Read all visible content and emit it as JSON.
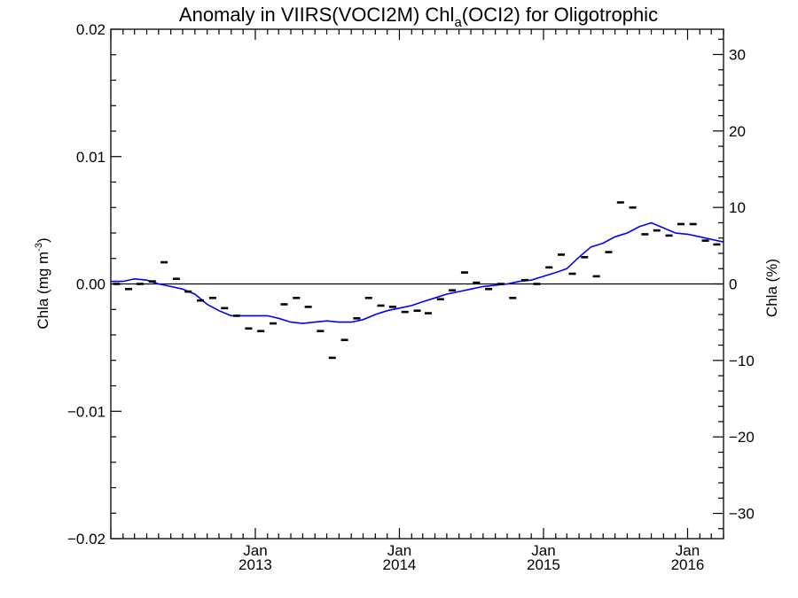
{
  "chart_data": {
    "type": "scatter",
    "title": "Anomaly in VIIRS(VOCI2M) Chla(OCI2) for Oligotrophic",
    "title_parts": {
      "before": "Anomaly in VIIRS(VOCI2M) Chl",
      "sub": "a",
      "after": "(OCI2) for Oligotrophic"
    },
    "ylabel_left": {
      "before": "Chla (mg m",
      "sup": "-3",
      "after": ")"
    },
    "ylabel_right": "Chla (%)",
    "xlim": [
      "2012-01-01",
      "2016-04-01"
    ],
    "ylim_left": [
      -0.02,
      0.02
    ],
    "ylim_right": [
      -33.3,
      33.3
    ],
    "x_ticks": [
      {
        "x": "2013-01-01",
        "month": "Jan",
        "year": "2013"
      },
      {
        "x": "2014-01-01",
        "month": "Jan",
        "year": "2014"
      },
      {
        "x": "2015-01-01",
        "month": "Jan",
        "year": "2015"
      },
      {
        "x": "2016-01-01",
        "month": "Jan",
        "year": "2016"
      }
    ],
    "y_ticks_left": [
      0.02,
      0.01,
      0.0,
      -0.01,
      -0.02
    ],
    "y_tick_labels_left": [
      "0.02",
      "0.01",
      "0.00",
      "−0.01",
      "−0.02"
    ],
    "y_ticks_right": [
      30,
      20,
      10,
      0,
      -10,
      -20,
      -30
    ],
    "y_tick_labels_right": [
      "30",
      "20",
      "10",
      "0",
      "−10",
      "−20",
      "−30"
    ],
    "zero_line": true,
    "grid": false,
    "series": [
      {
        "style": "markers",
        "color": "#000000",
        "points": [
          {
            "x": "2012-01-15",
            "y": 0.0
          },
          {
            "x": "2012-02-15",
            "y": -0.0004
          },
          {
            "x": "2012-03-15",
            "y": 0.0
          },
          {
            "x": "2012-04-15",
            "y": 0.0002
          },
          {
            "x": "2012-05-15",
            "y": 0.0017
          },
          {
            "x": "2012-06-15",
            "y": 0.0004
          },
          {
            "x": "2012-07-15",
            "y": -0.0006
          },
          {
            "x": "2012-08-15",
            "y": -0.0013
          },
          {
            "x": "2012-09-15",
            "y": -0.0011
          },
          {
            "x": "2012-10-15",
            "y": -0.0019
          },
          {
            "x": "2012-11-15",
            "y": -0.0025
          },
          {
            "x": "2012-12-15",
            "y": -0.0035
          },
          {
            "x": "2013-01-15",
            "y": -0.0037
          },
          {
            "x": "2013-02-15",
            "y": -0.0031
          },
          {
            "x": "2013-03-15",
            "y": -0.0016
          },
          {
            "x": "2013-04-15",
            "y": -0.0011
          },
          {
            "x": "2013-05-15",
            "y": -0.0018
          },
          {
            "x": "2013-06-15",
            "y": -0.0037
          },
          {
            "x": "2013-07-15",
            "y": -0.0058
          },
          {
            "x": "2013-08-15",
            "y": -0.0044
          },
          {
            "x": "2013-09-15",
            "y": -0.0027
          },
          {
            "x": "2013-10-15",
            "y": -0.0011
          },
          {
            "x": "2013-11-15",
            "y": -0.0017
          },
          {
            "x": "2013-12-15",
            "y": -0.0018
          },
          {
            "x": "2014-01-15",
            "y": -0.0022
          },
          {
            "x": "2014-02-15",
            "y": -0.0021
          },
          {
            "x": "2014-03-15",
            "y": -0.0023
          },
          {
            "x": "2014-04-15",
            "y": -0.0012
          },
          {
            "x": "2014-05-15",
            "y": -0.0005
          },
          {
            "x": "2014-06-15",
            "y": 0.0009
          },
          {
            "x": "2014-07-15",
            "y": 0.0001
          },
          {
            "x": "2014-08-15",
            "y": -0.0004
          },
          {
            "x": "2014-09-15",
            "y": 0.0
          },
          {
            "x": "2014-10-15",
            "y": -0.0011
          },
          {
            "x": "2014-11-15",
            "y": 0.0003
          },
          {
            "x": "2014-12-15",
            "y": 0.0
          },
          {
            "x": "2015-01-15",
            "y": 0.0013
          },
          {
            "x": "2015-02-15",
            "y": 0.0023
          },
          {
            "x": "2015-03-15",
            "y": 0.0008
          },
          {
            "x": "2015-04-15",
            "y": 0.0021
          },
          {
            "x": "2015-05-15",
            "y": 0.0006
          },
          {
            "x": "2015-06-15",
            "y": 0.0025
          },
          {
            "x": "2015-07-15",
            "y": 0.0064
          },
          {
            "x": "2015-08-15",
            "y": 0.006
          },
          {
            "x": "2015-09-15",
            "y": 0.0039
          },
          {
            "x": "2015-10-15",
            "y": 0.0042
          },
          {
            "x": "2015-11-15",
            "y": 0.0038
          },
          {
            "x": "2015-12-15",
            "y": 0.0047
          },
          {
            "x": "2016-01-15",
            "y": 0.0047
          },
          {
            "x": "2016-02-15",
            "y": 0.0034
          },
          {
            "x": "2016-03-15",
            "y": 0.0031
          }
        ]
      },
      {
        "style": "line",
        "color": "#0000ff",
        "points": [
          {
            "x": "2012-01-01",
            "y": 0.0002
          },
          {
            "x": "2012-02-01",
            "y": 0.0002
          },
          {
            "x": "2012-03-01",
            "y": 0.0004
          },
          {
            "x": "2012-04-01",
            "y": 0.0003
          },
          {
            "x": "2012-05-01",
            "y": 0.0
          },
          {
            "x": "2012-06-01",
            "y": -0.0002
          },
          {
            "x": "2012-07-01",
            "y": -0.0004
          },
          {
            "x": "2012-08-01",
            "y": -0.0008
          },
          {
            "x": "2012-09-01",
            "y": -0.0016
          },
          {
            "x": "2012-10-01",
            "y": -0.0021
          },
          {
            "x": "2012-11-01",
            "y": -0.0025
          },
          {
            "x": "2012-12-01",
            "y": -0.0025
          },
          {
            "x": "2013-01-01",
            "y": -0.0025
          },
          {
            "x": "2013-02-01",
            "y": -0.0025
          },
          {
            "x": "2013-03-01",
            "y": -0.0027
          },
          {
            "x": "2013-04-01",
            "y": -0.003
          },
          {
            "x": "2013-05-01",
            "y": -0.0031
          },
          {
            "x": "2013-06-01",
            "y": -0.003
          },
          {
            "x": "2013-07-01",
            "y": -0.0029
          },
          {
            "x": "2013-08-01",
            "y": -0.003
          },
          {
            "x": "2013-09-01",
            "y": -0.003
          },
          {
            "x": "2013-10-01",
            "y": -0.0028
          },
          {
            "x": "2013-11-01",
            "y": -0.0024
          },
          {
            "x": "2013-12-01",
            "y": -0.0021
          },
          {
            "x": "2014-01-01",
            "y": -0.0019
          },
          {
            "x": "2014-02-01",
            "y": -0.0017
          },
          {
            "x": "2014-03-01",
            "y": -0.0014
          },
          {
            "x": "2014-04-01",
            "y": -0.0011
          },
          {
            "x": "2014-05-01",
            "y": -0.0008
          },
          {
            "x": "2014-06-01",
            "y": -0.0006
          },
          {
            "x": "2014-07-01",
            "y": -0.0004
          },
          {
            "x": "2014-08-01",
            "y": -0.0002
          },
          {
            "x": "2014-09-01",
            "y": -0.0001
          },
          {
            "x": "2014-10-01",
            "y": 0.0
          },
          {
            "x": "2014-11-01",
            "y": 0.0002
          },
          {
            "x": "2014-12-01",
            "y": 0.0003
          },
          {
            "x": "2015-01-01",
            "y": 0.0006
          },
          {
            "x": "2015-02-01",
            "y": 0.0009
          },
          {
            "x": "2015-03-01",
            "y": 0.0012
          },
          {
            "x": "2015-04-01",
            "y": 0.0021
          },
          {
            "x": "2015-05-01",
            "y": 0.0029
          },
          {
            "x": "2015-06-01",
            "y": 0.0032
          },
          {
            "x": "2015-07-01",
            "y": 0.0037
          },
          {
            "x": "2015-08-01",
            "y": 0.004
          },
          {
            "x": "2015-09-01",
            "y": 0.0045
          },
          {
            "x": "2015-10-01",
            "y": 0.0048
          },
          {
            "x": "2015-11-01",
            "y": 0.0044
          },
          {
            "x": "2015-12-01",
            "y": 0.004
          },
          {
            "x": "2016-01-01",
            "y": 0.0039
          },
          {
            "x": "2016-02-01",
            "y": 0.0037
          },
          {
            "x": "2016-03-01",
            "y": 0.0035
          },
          {
            "x": "2016-04-01",
            "y": 0.0033
          }
        ]
      }
    ]
  }
}
